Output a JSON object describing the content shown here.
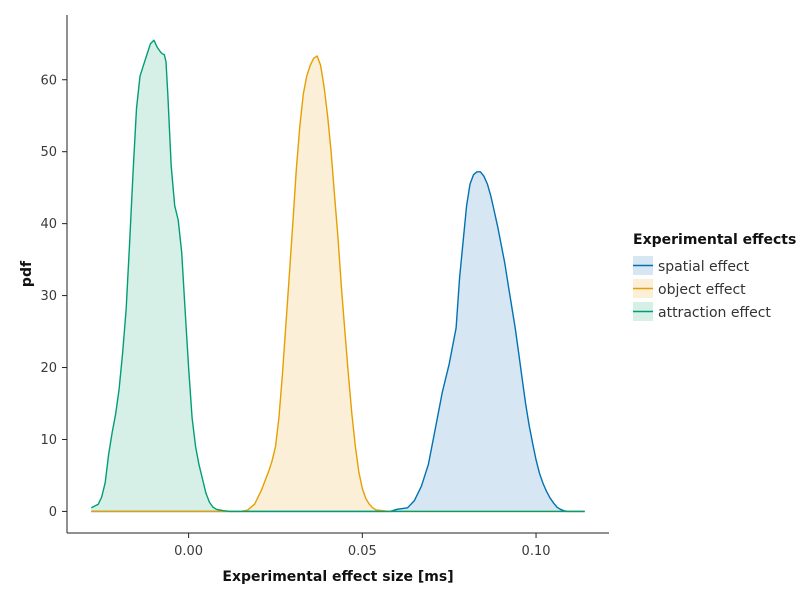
{
  "chart_data": {
    "type": "area",
    "title": "",
    "xlabel": "Experimental effect size [ms]",
    "ylabel": "pdf",
    "xlim": [
      -0.035,
      0.121
    ],
    "ylim": [
      -3,
      69
    ],
    "xticks": [
      0.0,
      0.05,
      0.1
    ],
    "xtick_labels": [
      "0.00",
      "0.05",
      "0.10"
    ],
    "yticks": [
      0,
      10,
      20,
      30,
      40,
      50,
      60
    ],
    "ytick_labels": [
      "0",
      "10",
      "20",
      "30",
      "40",
      "50",
      "60"
    ],
    "grid": false,
    "legend_title": "Experimental effects",
    "legend_position": "right",
    "series": [
      {
        "name": "spatial effect",
        "color": "#0072b2",
        "fill": "#d6e6f2",
        "x": [
          -0.028,
          0.058,
          0.06,
          0.063,
          0.065,
          0.067,
          0.069,
          0.071,
          0.073,
          0.075,
          0.077,
          0.078,
          0.079,
          0.08,
          0.081,
          0.082,
          0.083,
          0.084,
          0.085,
          0.086,
          0.087,
          0.088,
          0.089,
          0.09,
          0.091,
          0.092,
          0.093,
          0.094,
          0.095,
          0.096,
          0.097,
          0.098,
          0.099,
          0.1,
          0.101,
          0.102,
          0.103,
          0.104,
          0.105,
          0.106,
          0.107,
          0.108,
          0.109,
          0.11,
          0.111,
          0.112,
          0.114
        ],
        "y": [
          0,
          0,
          0.3,
          0.5,
          1.5,
          3.5,
          6.5,
          11.5,
          16.5,
          20.5,
          25.5,
          32.5,
          37.5,
          42.5,
          45.5,
          46.8,
          47.2,
          47.2,
          46.6,
          45.5,
          43.8,
          41.7,
          39.5,
          37.0,
          34.5,
          31.5,
          28.5,
          25.5,
          22.0,
          18.5,
          15.0,
          12.0,
          9.5,
          7.2,
          5.3,
          3.9,
          2.8,
          1.9,
          1.2,
          0.6,
          0.3,
          0.1,
          0,
          0,
          0,
          0,
          0
        ]
      },
      {
        "name": "object effect",
        "color": "#e69f00",
        "fill": "#fbefd8",
        "x": [
          -0.028,
          0.015,
          0.017,
          0.019,
          0.021,
          0.023,
          0.024,
          0.025,
          0.026,
          0.027,
          0.028,
          0.029,
          0.03,
          0.031,
          0.032,
          0.033,
          0.034,
          0.035,
          0.036,
          0.037,
          0.038,
          0.039,
          0.04,
          0.041,
          0.042,
          0.043,
          0.044,
          0.045,
          0.046,
          0.047,
          0.048,
          0.049,
          0.05,
          0.051,
          0.052,
          0.053,
          0.054,
          0.056,
          0.058,
          0.114
        ],
        "y": [
          0,
          0,
          0.2,
          1.0,
          3.0,
          5.5,
          7.0,
          9.0,
          13.0,
          19.0,
          26.0,
          33.0,
          40.0,
          47.5,
          53.5,
          58.0,
          60.5,
          62.0,
          63.0,
          63.3,
          62.0,
          59.0,
          55.0,
          50.0,
          44.0,
          38.0,
          31.0,
          25.0,
          19.0,
          13.5,
          9.0,
          5.5,
          3.2,
          1.8,
          1.0,
          0.5,
          0.2,
          0.1,
          0,
          0
        ]
      },
      {
        "name": "attraction effect",
        "color": "#009e73",
        "fill": "#d6efe7",
        "x": [
          -0.028,
          -0.026,
          -0.025,
          -0.024,
          -0.023,
          -0.022,
          -0.021,
          -0.02,
          -0.019,
          -0.018,
          -0.017,
          -0.016,
          -0.015,
          -0.014,
          -0.013,
          -0.012,
          -0.011,
          -0.01,
          -0.009,
          -0.008,
          -0.0075,
          -0.007,
          -0.0065,
          -0.006,
          -0.005,
          -0.004,
          -0.003,
          -0.002,
          -0.001,
          0.0,
          0.001,
          0.002,
          0.003,
          0.004,
          0.005,
          0.006,
          0.007,
          0.008,
          0.01,
          0.012,
          0.014,
          0.114
        ],
        "y": [
          0.5,
          1.0,
          2.0,
          4.0,
          8.0,
          11.0,
          13.5,
          17.0,
          22.0,
          28.0,
          37.0,
          47.0,
          56.0,
          60.5,
          62.0,
          63.5,
          65.0,
          65.5,
          64.5,
          63.8,
          63.6,
          63.5,
          62.5,
          58.0,
          48.0,
          42.5,
          40.5,
          36.0,
          28.0,
          20.0,
          13.0,
          9.0,
          6.5,
          4.5,
          2.5,
          1.3,
          0.6,
          0.3,
          0.1,
          0,
          0,
          0
        ]
      }
    ]
  }
}
